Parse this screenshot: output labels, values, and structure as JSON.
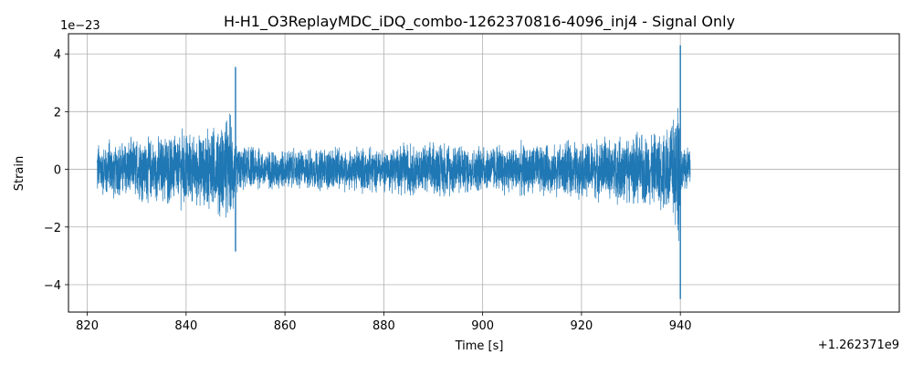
{
  "chart_data": {
    "type": "line",
    "title": "H-H1_O3ReplayMDC_iDQ_combo-1262370816-4096_inj4 - Signal Only",
    "xlabel": "Time [s]",
    "ylabel": "Strain",
    "x_offset_label": "+1.262371e9",
    "y_scale_label": "1e−23",
    "xlim": [
      816.2,
      984.3
    ],
    "ylim": [
      -4.95,
      4.7
    ],
    "x_ticks": [
      820,
      840,
      860,
      880,
      900,
      920,
      940
    ],
    "x_tick_labels": [
      "820",
      "840",
      "860",
      "880",
      "900",
      "920",
      "940"
    ],
    "y_ticks": [
      -4,
      -2,
      0,
      2,
      4
    ],
    "y_tick_labels": [
      "−4",
      "−2",
      "0",
      "2",
      "4"
    ],
    "grid": true,
    "legend": "none",
    "series_color": "#1f77b4",
    "series": [
      {
        "x_range": [
          822,
          942
        ],
        "envelope": {
          "x": [
            822,
            826,
            830,
            834,
            838,
            842,
            845,
            847,
            848.5,
            849.5,
            850,
            850.5,
            852,
            856,
            860,
            864,
            868,
            872,
            876,
            880,
            884,
            888,
            892,
            896,
            900,
            904,
            908,
            912,
            916,
            920,
            924,
            928,
            932,
            934,
            936,
            937.5,
            938.5,
            939.3,
            939.7,
            940,
            940.3,
            941,
            942
          ],
          "amplitude": [
            1.2,
            1.1,
            1.25,
            1.3,
            1.5,
            1.4,
            1.7,
            1.8,
            2.0,
            2.1,
            1.2,
            0.95,
            0.85,
            0.8,
            0.82,
            0.8,
            0.85,
            0.85,
            0.9,
            0.85,
            1.0,
            1.0,
            1.05,
            1.0,
            0.9,
            0.95,
            1.05,
            1.0,
            1.05,
            1.1,
            1.2,
            1.3,
            1.45,
            1.5,
            1.6,
            1.8,
            2.1,
            2.6,
            2.9,
            1.3,
            0.9,
            0.75,
            0.8
          ]
        },
        "peaks": [
          {
            "x": 850.0,
            "high": 3.55,
            "low": -2.85
          },
          {
            "x": 940.0,
            "high": 4.3,
            "low": -4.5
          }
        ]
      }
    ]
  }
}
